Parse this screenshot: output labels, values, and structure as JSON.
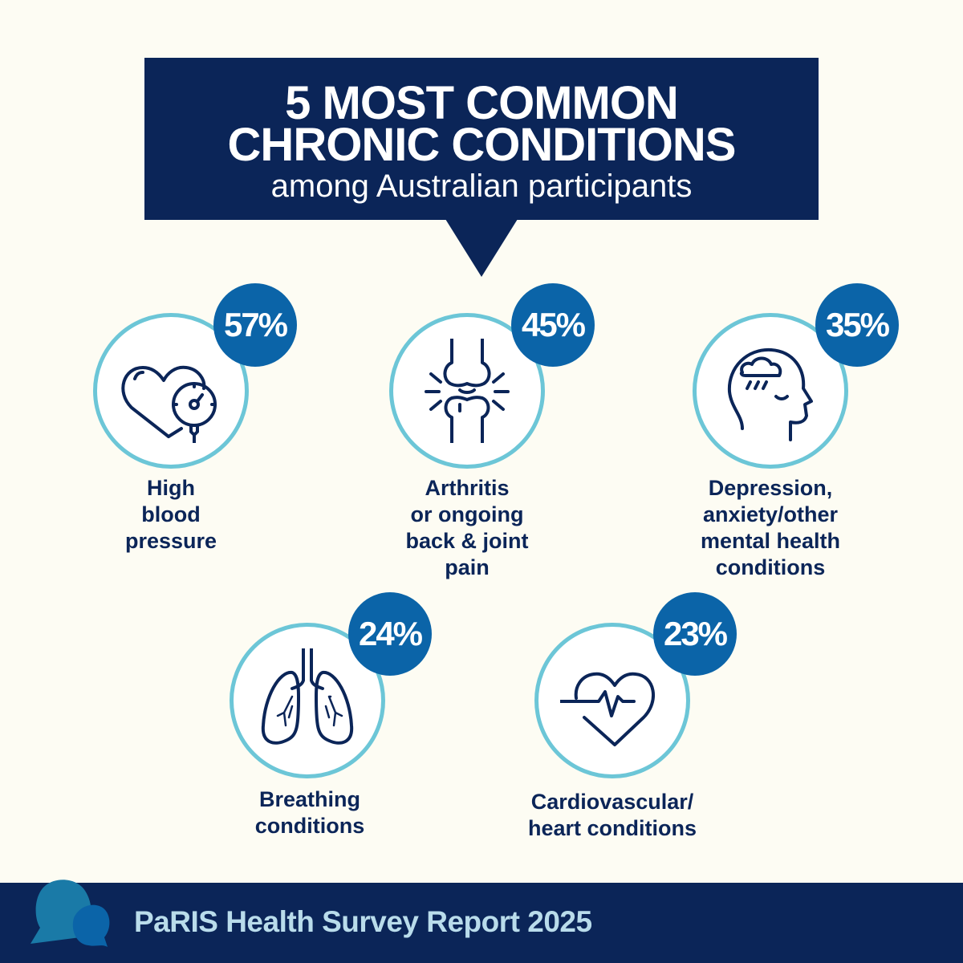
{
  "header": {
    "title_line1": "5 MOST COMMON",
    "title_line2": "CHRONIC CONDITIONS",
    "subtitle": "among Australian participants"
  },
  "conditions": [
    {
      "percent": "57%",
      "label": [
        "High",
        "blood",
        "pressure"
      ],
      "icon": "heart-blood-pressure-gauge-icon"
    },
    {
      "percent": "45%",
      "label": [
        "Arthritis",
        "or ongoing",
        "back & joint",
        "pain"
      ],
      "icon": "knee-joint-icon"
    },
    {
      "percent": "35%",
      "label": [
        "Depression,",
        "anxiety/other",
        "mental health",
        "conditions"
      ],
      "icon": "head-storm-cloud-icon"
    },
    {
      "percent": "24%",
      "label": [
        "Breathing",
        "conditions"
      ],
      "icon": "lungs-icon"
    },
    {
      "percent": "23%",
      "label": [
        "Cardiovascular/",
        "heart conditions"
      ],
      "icon": "heart-heartbeat-icon"
    }
  ],
  "footer": {
    "text": "PaRIS Health Survey Report 2025"
  },
  "colors": {
    "navy": "#0b2558",
    "badge": "#0b64a8",
    "ring": "#6cc6d7",
    "footer_text": "#b9dceb",
    "background": "#fdfcf3"
  }
}
